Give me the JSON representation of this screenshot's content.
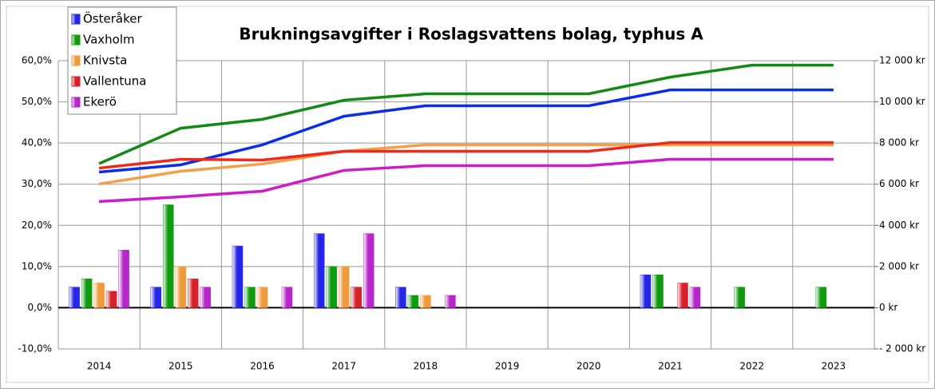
{
  "chart_data": {
    "type": "bar",
    "title": "Brukningsavgifter i Roslagsvattens bolag, typhus A",
    "categories": [
      "2014",
      "2015",
      "2016",
      "2017",
      "2018",
      "2019",
      "2020",
      "2021",
      "2022",
      "2023"
    ],
    "series": [
      {
        "name": "Österåker",
        "type": "bar",
        "color": "#2626e6",
        "values": [
          5,
          5,
          15,
          18,
          5,
          0,
          0,
          8,
          0,
          0
        ]
      },
      {
        "name": "Vaxholm",
        "type": "bar",
        "color": "#0f9a0f",
        "values": [
          7,
          25,
          5,
          10,
          3,
          0,
          0,
          8,
          5,
          5
        ]
      },
      {
        "name": "Knivsta",
        "type": "bar",
        "color": "#f09a3c",
        "values": [
          6,
          10,
          5,
          10,
          3,
          0,
          0,
          0,
          0,
          0
        ]
      },
      {
        "name": "Vallentuna",
        "type": "bar",
        "color": "#d6202a",
        "values": [
          4,
          7,
          0,
          5,
          0,
          0,
          0,
          6,
          0,
          0
        ]
      },
      {
        "name": "Ekerö",
        "type": "bar",
        "color": "#b626c8",
        "values": [
          14,
          5,
          5,
          18,
          3,
          0,
          0,
          5,
          0,
          0
        ]
      },
      {
        "type": "line",
        "axis": "y2",
        "color": "#0a2ee6",
        "values": [
          6590,
          6940,
          7910,
          9300,
          9810,
          9810,
          9810,
          10580,
          10580,
          10580
        ]
      },
      {
        "type": "line",
        "axis": "y2",
        "color": "#138a13",
        "values": [
          7000,
          8720,
          9150,
          10080,
          10390,
          10390,
          10390,
          11200,
          11780,
          11780
        ]
      },
      {
        "type": "line",
        "axis": "y2",
        "color": "#f2a04a",
        "values": [
          6010,
          6630,
          6980,
          7600,
          7910,
          7910,
          7910,
          7910,
          7910,
          7910
        ]
      },
      {
        "type": "line",
        "axis": "y2",
        "color": "#ee2a1c",
        "values": [
          6780,
          7210,
          7170,
          7600,
          7600,
          7600,
          7600,
          8020,
          8020,
          8020
        ]
      },
      {
        "type": "line",
        "axis": "y2",
        "color": "#cc1ccc",
        "values": [
          5160,
          5390,
          5660,
          6670,
          6900,
          6900,
          6900,
          7210,
          7210,
          7210
        ]
      }
    ],
    "ylim": [
      -10,
      60
    ],
    "yticks": [
      {
        "value": -10,
        "label": "-10,0%"
      },
      {
        "value": 0,
        "label": "0,0%"
      },
      {
        "value": 10,
        "label": "10,0%"
      },
      {
        "value": 20,
        "label": "20,0%"
      },
      {
        "value": 30,
        "label": "30,0%"
      },
      {
        "value": 40,
        "label": "40,0%"
      },
      {
        "value": 50,
        "label": "50,0%"
      },
      {
        "value": 60,
        "label": "60,0%"
      }
    ],
    "y2lim": [
      -2000,
      12000
    ],
    "y2ticks": [
      {
        "value": -2000,
        "label": "- 2 000 kr"
      },
      {
        "value": 0,
        "label": "0 kr"
      },
      {
        "value": 2000,
        "label": "2 000 kr"
      },
      {
        "value": 4000,
        "label": "4 000 kr"
      },
      {
        "value": 6000,
        "label": "6 000 kr"
      },
      {
        "value": 8000,
        "label": "8 000 kr"
      },
      {
        "value": 10000,
        "label": "10 000 kr"
      },
      {
        "value": 12000,
        "label": "12 000 kr"
      }
    ],
    "grid": true
  }
}
